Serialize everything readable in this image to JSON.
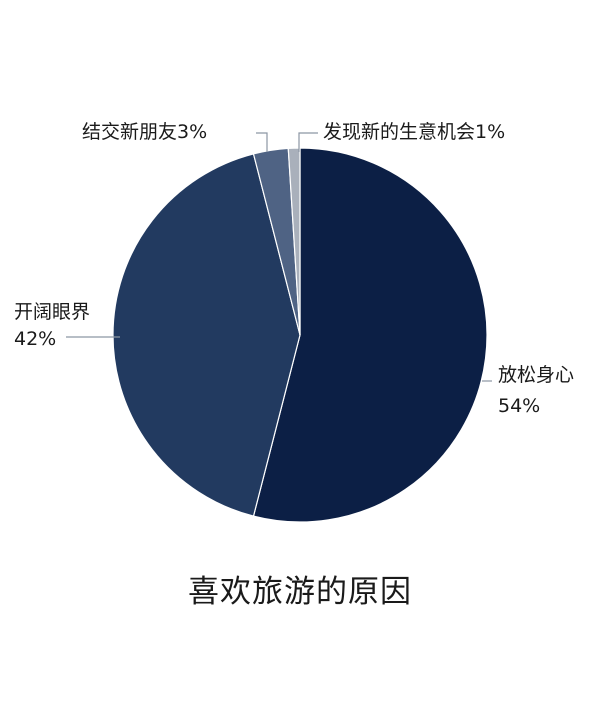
{
  "chart_data": {
    "type": "pie",
    "title": "喜欢旅游的原因",
    "slices": [
      {
        "category": "放松身心",
        "value": 54,
        "label": "54%",
        "color": "#0c1f45"
      },
      {
        "category": "开阔眼界",
        "value": 42,
        "label": "42%",
        "color": "#223a60"
      },
      {
        "category": "结交新朋友",
        "value": 3,
        "label": "3%",
        "color": "#4f6384"
      },
      {
        "category": "发现新的生意机会",
        "value": 1,
        "label": "1%",
        "color": "#a9b0bb"
      }
    ]
  }
}
